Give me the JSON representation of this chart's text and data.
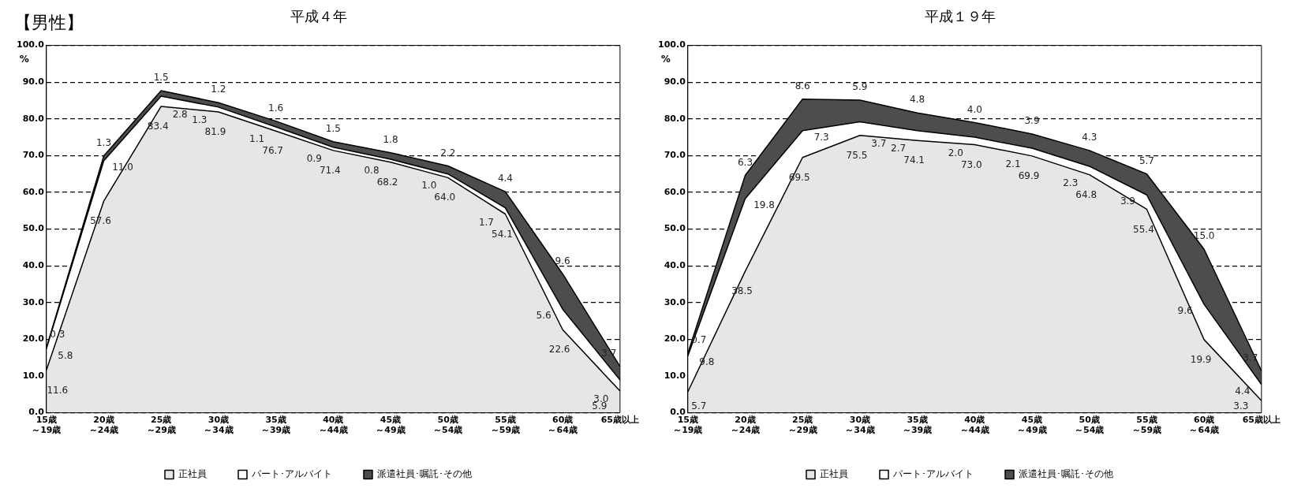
{
  "chart_data": [
    {
      "type": "area",
      "title": "平成４年",
      "ylabel": "%",
      "annotations": [
        "【男性】"
      ],
      "stacked": true,
      "grid": "y",
      "line_style": "dashed",
      "marker": "none",
      "legend": "bottom",
      "categories": [
        "15歳～19歳",
        "20歳～24歳",
        "25歳～29歳",
        "30歳～34歳",
        "35歳～39歳",
        "40歳～44歳",
        "45歳～49歳",
        "50歳～54歳",
        "55歳～59歳",
        "60歳～64歳",
        "65歳以上"
      ],
      "ylim": [
        0,
        100
      ],
      "yticks": [
        {
          "value": 0,
          "label": "0.0"
        },
        {
          "value": 10,
          "label": "10.0"
        },
        {
          "value": 20,
          "label": "20.0"
        },
        {
          "value": 30,
          "label": "30.0"
        },
        {
          "value": 40,
          "label": "40.0"
        },
        {
          "value": 50,
          "label": "50.0"
        },
        {
          "value": 60,
          "label": "60.0"
        },
        {
          "value": 70,
          "label": "70.0"
        },
        {
          "value": 80,
          "label": "80.0"
        },
        {
          "value": 90,
          "label": "90.0"
        },
        {
          "value": 100,
          "label": "100.0"
        }
      ],
      "series": [
        {
          "name": "正社員",
          "color": "#e6e6e6",
          "values": [
            11.6,
            57.6,
            83.4,
            81.9,
            76.7,
            71.4,
            68.2,
            64.0,
            54.1,
            22.6,
            5.9
          ],
          "value_labels": [
            "11.6",
            "57.6",
            "83.4",
            "81.9",
            "76.7",
            "71.4",
            "68.2",
            "64.0",
            "54.1",
            "22.6",
            "5.9"
          ]
        },
        {
          "name": "パート･アルバイト",
          "color": "#ffffff",
          "values": [
            5.8,
            11.0,
            2.8,
            1.3,
            1.1,
            0.9,
            0.8,
            1.0,
            1.7,
            5.6,
            3.0
          ],
          "value_labels": [
            "5.8",
            "11.0",
            "2.8",
            "1.3",
            "1.1",
            "0.9",
            "0.8",
            "1.0",
            "1.7",
            "5.6",
            "3.0"
          ]
        },
        {
          "name": "派遣社員･嘱託･その他",
          "color": "#4d4d4d",
          "values": [
            0.3,
            1.3,
            1.5,
            1.2,
            1.6,
            1.5,
            1.8,
            2.2,
            4.4,
            9.6,
            3.7
          ],
          "value_labels": [
            "0.3",
            "1.3",
            "1.5",
            "1.2",
            "1.6",
            "1.5",
            "1.8",
            "2.2",
            "4.4",
            "9.6",
            "3.7"
          ]
        }
      ]
    },
    {
      "type": "area",
      "title": "平成１９年",
      "ylabel": "%",
      "stacked": true,
      "grid": "y",
      "line_style": "dashed",
      "marker": "none",
      "legend": "bottom",
      "categories": [
        "15歳～19歳",
        "20歳～24歳",
        "25歳～29歳",
        "30歳～34歳",
        "35歳～39歳",
        "40歳～44歳",
        "45歳～49歳",
        "50歳～54歳",
        "55歳～59歳",
        "60歳～64歳",
        "65歳以上"
      ],
      "ylim": [
        0,
        100
      ],
      "yticks": [
        {
          "value": 0,
          "label": "0.0"
        },
        {
          "value": 10,
          "label": "10.0"
        },
        {
          "value": 20,
          "label": "20.0"
        },
        {
          "value": 30,
          "label": "30.0"
        },
        {
          "value": 40,
          "label": "40.0"
        },
        {
          "value": 50,
          "label": "50.0"
        },
        {
          "value": 60,
          "label": "60.0"
        },
        {
          "value": 70,
          "label": "70.0"
        },
        {
          "value": 80,
          "label": "80.0"
        },
        {
          "value": 90,
          "label": "90.0"
        },
        {
          "value": 100,
          "label": "100.0"
        }
      ],
      "series": [
        {
          "name": "正社員",
          "color": "#e6e6e6",
          "values": [
            5.7,
            38.5,
            69.5,
            75.5,
            74.1,
            73.0,
            69.9,
            64.8,
            55.4,
            19.9,
            3.3
          ],
          "value_labels": [
            "5.7",
            "38.5",
            "69.5",
            "75.5",
            "74.1",
            "73.0",
            "69.9",
            "64.8",
            "55.4",
            "19.9",
            "3.3"
          ]
        },
        {
          "name": "パート･アルバイト",
          "color": "#ffffff",
          "values": [
            9.8,
            19.8,
            7.3,
            3.7,
            2.7,
            2.0,
            2.1,
            2.3,
            3.9,
            9.6,
            4.4
          ],
          "value_labels": [
            "9.8",
            "19.8",
            "7.3",
            "3.7",
            "2.7",
            "2.0",
            "2.1",
            "2.3",
            "3.9",
            "9.6",
            "4.4"
          ]
        },
        {
          "name": "派遣社員･嘱託･その他",
          "color": "#4d4d4d",
          "values": [
            0.7,
            6.3,
            8.6,
            5.9,
            4.8,
            4.0,
            3.9,
            4.3,
            5.7,
            15.0,
            3.7
          ],
          "value_labels": [
            "0.7",
            "6.3",
            "8.6",
            "5.9",
            "4.8",
            "4.0",
            "3.9",
            "4.3",
            "5.7",
            "15.0",
            "3.7"
          ]
        }
      ]
    }
  ]
}
